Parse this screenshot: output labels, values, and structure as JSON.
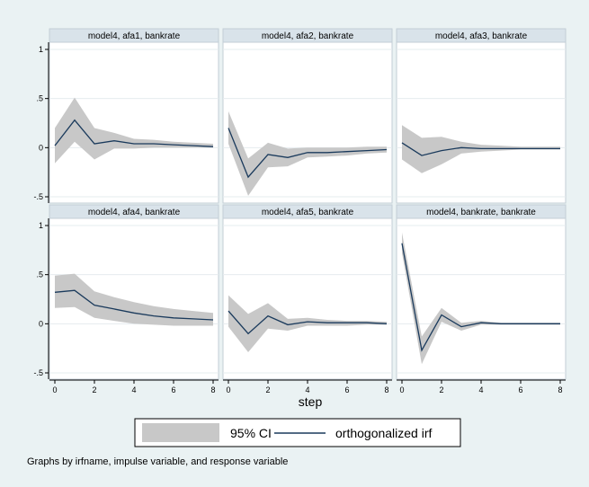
{
  "chart_data": {
    "type": "line",
    "layout": "2x3 small multiples",
    "x_ticks": [
      0,
      2,
      4,
      6,
      8
    ],
    "xlabel": "step",
    "ylim": [
      -0.5,
      1
    ],
    "y_ticks": [
      -0.5,
      0,
      0.5,
      1
    ],
    "y_tick_labels": [
      "-.5",
      "0",
      ".5",
      "1"
    ],
    "x_ticks_shown_on": "bottom row",
    "y_ticks_shown_on": "left column",
    "legend": {
      "placement": "bottom",
      "ci_label": "95% CI",
      "line_label": "orthogonalized irf"
    },
    "note": "Graphs by irfname, impulse variable, and response variable",
    "colors": {
      "background": "#eaf2f3",
      "ci_band": "#c8c8c8",
      "irf_line": "#1a3a5c"
    },
    "x": [
      0,
      1,
      2,
      3,
      4,
      5,
      6,
      7,
      8
    ],
    "panels": [
      {
        "title": "model4, afa1, bankrate",
        "irf": [
          0.02,
          0.28,
          0.04,
          0.07,
          0.04,
          0.04,
          0.03,
          0.02,
          0.01
        ],
        "lower": [
          -0.16,
          0.06,
          -0.12,
          -0.01,
          -0.01,
          0.0,
          0.0,
          0.0,
          0.0
        ],
        "upper": [
          0.2,
          0.51,
          0.2,
          0.15,
          0.09,
          0.08,
          0.06,
          0.05,
          0.04
        ]
      },
      {
        "title": "model4, afa2, bankrate",
        "irf": [
          0.2,
          -0.3,
          -0.07,
          -0.1,
          -0.05,
          -0.05,
          -0.04,
          -0.03,
          -0.02
        ],
        "lower": [
          0.04,
          -0.49,
          -0.2,
          -0.19,
          -0.1,
          -0.09,
          -0.08,
          -0.06,
          -0.05
        ],
        "upper": [
          0.37,
          -0.11,
          0.05,
          -0.01,
          0.0,
          0.0,
          0.0,
          0.01,
          0.01
        ]
      },
      {
        "title": "model4, afa3, bankrate",
        "irf": [
          0.05,
          -0.08,
          -0.03,
          0.0,
          -0.01,
          -0.01,
          -0.01,
          -0.01,
          -0.01
        ],
        "lower": [
          -0.12,
          -0.26,
          -0.17,
          -0.06,
          -0.04,
          -0.03,
          -0.02,
          -0.02,
          -0.02
        ],
        "upper": [
          0.23,
          0.1,
          0.11,
          0.06,
          0.03,
          0.02,
          0.01,
          0.01,
          0.01
        ]
      },
      {
        "title": "model4, afa4, bankrate",
        "irf": [
          0.32,
          0.34,
          0.19,
          0.15,
          0.11,
          0.08,
          0.06,
          0.05,
          0.04
        ],
        "lower": [
          0.16,
          0.17,
          0.06,
          0.03,
          0.0,
          -0.01,
          -0.02,
          -0.02,
          -0.02
        ],
        "upper": [
          0.49,
          0.51,
          0.33,
          0.27,
          0.22,
          0.18,
          0.15,
          0.13,
          0.11
        ]
      },
      {
        "title": "model4, afa5, bankrate",
        "irf": [
          0.13,
          -0.1,
          0.08,
          -0.01,
          0.02,
          0.01,
          0.01,
          0.01,
          0.0
        ],
        "lower": [
          -0.03,
          -0.29,
          -0.05,
          -0.07,
          -0.02,
          -0.02,
          -0.02,
          -0.01,
          -0.01
        ],
        "upper": [
          0.29,
          0.1,
          0.21,
          0.05,
          0.06,
          0.04,
          0.03,
          0.03,
          0.02
        ]
      },
      {
        "title": "model4, bankrate, bankrate",
        "irf": [
          0.82,
          -0.27,
          0.09,
          -0.03,
          0.01,
          0.0,
          0.0,
          0.0,
          0.0
        ],
        "lower": [
          0.72,
          -0.41,
          0.02,
          -0.07,
          -0.01,
          -0.01,
          -0.01,
          -0.01,
          -0.01
        ],
        "upper": [
          0.93,
          -0.13,
          0.16,
          0.01,
          0.03,
          0.01,
          0.01,
          0.01,
          0.01
        ]
      }
    ]
  }
}
